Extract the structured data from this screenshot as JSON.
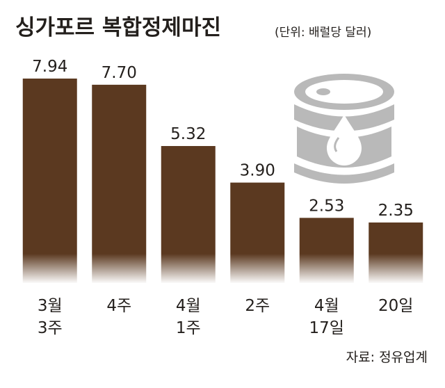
{
  "chart_data": {
    "type": "bar",
    "title": "싱가포르 복합정제마진",
    "subtitle": "(단위: 배럴당 달러)",
    "categories": [
      "3월\n3주",
      "4주",
      "4월\n1주",
      "2주",
      "4월\n17일",
      "20일"
    ],
    "values": [
      7.94,
      7.7,
      5.32,
      3.9,
      2.53,
      2.35
    ],
    "value_labels": [
      "7.94",
      "7.70",
      "5.32",
      "3.90",
      "2.53",
      "2.35"
    ],
    "color": "#5b3920",
    "source": "자료: 정유업계"
  }
}
